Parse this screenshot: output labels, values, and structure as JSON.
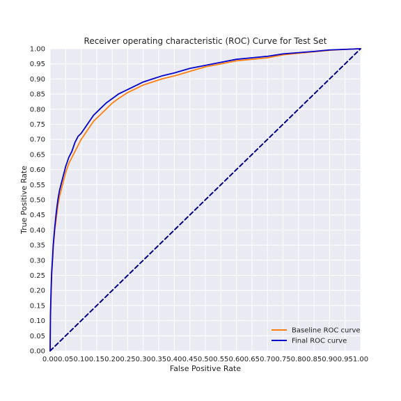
{
  "chart_data": {
    "type": "line",
    "title": "Receiver operating characteristic (ROC) Curve for Test Set",
    "xlabel": "False Positive Rate",
    "ylabel": "True Positive Rate",
    "xlim": [
      0,
      1
    ],
    "ylim": [
      0,
      1
    ],
    "xticks": [
      "0.00",
      "0.05",
      "0.10",
      "0.15",
      "0.20",
      "0.25",
      "0.30",
      "0.35",
      "0.40",
      "0.45",
      "0.50",
      "0.55",
      "0.60",
      "0.65",
      "0.70",
      "0.75",
      "0.80",
      "0.85",
      "0.90",
      "0.95",
      "1.00"
    ],
    "yticks": [
      "0.00",
      "0.05",
      "0.10",
      "0.15",
      "0.20",
      "0.25",
      "0.30",
      "0.35",
      "0.40",
      "0.45",
      "0.50",
      "0.55",
      "0.60",
      "0.65",
      "0.70",
      "0.75",
      "0.80",
      "0.85",
      "0.90",
      "0.95",
      "1.00"
    ],
    "grid": true,
    "background": "#eaeaf2",
    "legend_position": "bottom-right",
    "series": [
      {
        "name": "Baseline ROC curve",
        "color": "#ff7f0e",
        "style": "solid",
        "x": [
          0,
          0.001,
          0.003,
          0.005,
          0.008,
          0.01,
          0.015,
          0.02,
          0.025,
          0.03,
          0.04,
          0.05,
          0.06,
          0.07,
          0.08,
          0.09,
          0.1,
          0.12,
          0.14,
          0.16,
          0.18,
          0.2,
          0.22,
          0.25,
          0.28,
          0.3,
          0.33,
          0.36,
          0.4,
          0.45,
          0.5,
          0.55,
          0.6,
          0.65,
          0.7,
          0.75,
          0.8,
          0.85,
          0.9,
          0.95,
          1.0
        ],
        "y": [
          0,
          0.1,
          0.18,
          0.25,
          0.3,
          0.34,
          0.4,
          0.44,
          0.48,
          0.51,
          0.55,
          0.59,
          0.62,
          0.64,
          0.66,
          0.68,
          0.7,
          0.73,
          0.76,
          0.78,
          0.8,
          0.82,
          0.835,
          0.855,
          0.87,
          0.88,
          0.89,
          0.9,
          0.91,
          0.925,
          0.94,
          0.95,
          0.96,
          0.965,
          0.97,
          0.98,
          0.985,
          0.99,
          0.995,
          0.998,
          1.0
        ]
      },
      {
        "name": "Final ROC curve",
        "color": "#0000cc",
        "style": "solid",
        "x": [
          0,
          0.001,
          0.003,
          0.005,
          0.008,
          0.01,
          0.015,
          0.02,
          0.025,
          0.03,
          0.04,
          0.05,
          0.06,
          0.07,
          0.08,
          0.09,
          0.1,
          0.12,
          0.14,
          0.16,
          0.18,
          0.2,
          0.22,
          0.25,
          0.28,
          0.3,
          0.33,
          0.36,
          0.4,
          0.45,
          0.5,
          0.55,
          0.6,
          0.65,
          0.7,
          0.75,
          0.8,
          0.85,
          0.9,
          0.95,
          1.0
        ],
        "y": [
          0,
          0.12,
          0.2,
          0.26,
          0.31,
          0.35,
          0.41,
          0.46,
          0.5,
          0.53,
          0.57,
          0.61,
          0.64,
          0.66,
          0.69,
          0.71,
          0.72,
          0.75,
          0.78,
          0.8,
          0.82,
          0.835,
          0.85,
          0.865,
          0.88,
          0.89,
          0.9,
          0.91,
          0.92,
          0.935,
          0.945,
          0.955,
          0.965,
          0.97,
          0.975,
          0.983,
          0.987,
          0.991,
          0.996,
          0.998,
          1.0
        ]
      },
      {
        "name": "",
        "color": "#000080",
        "style": "dashed",
        "x": [
          0,
          1
        ],
        "y": [
          0,
          1
        ]
      }
    ]
  }
}
